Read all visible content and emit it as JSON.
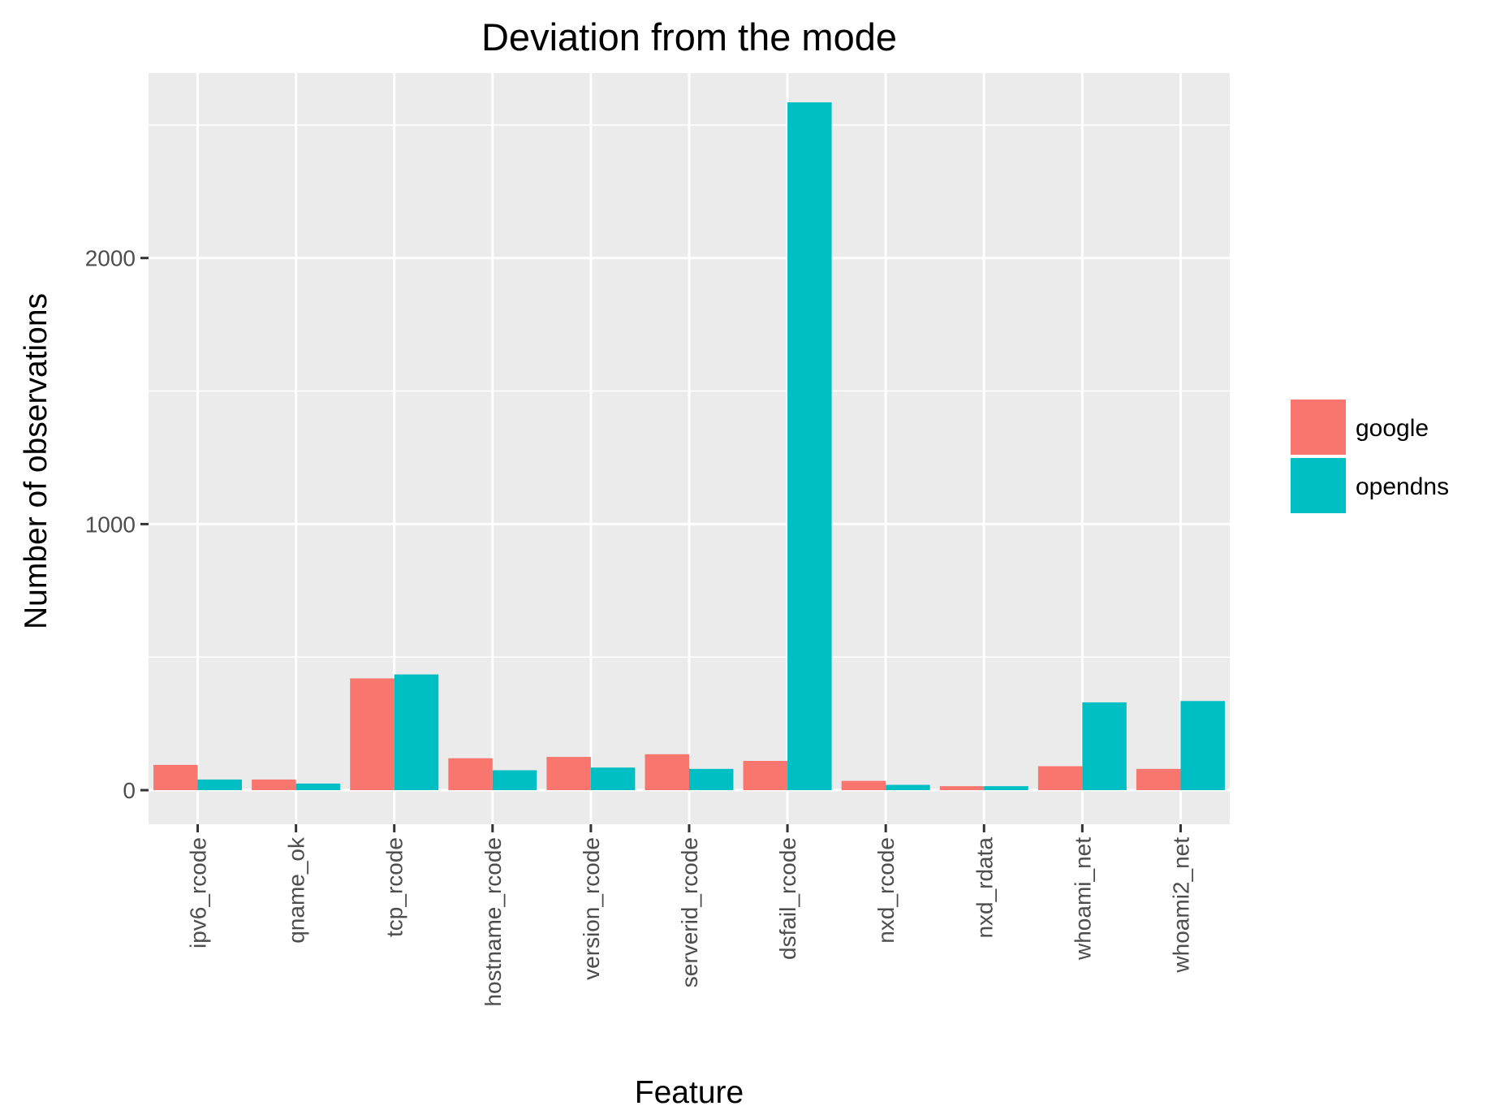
{
  "chart_data": {
    "type": "bar",
    "title": "Deviation from the mode",
    "xlabel": "Feature",
    "ylabel": "Number of observations",
    "categories": [
      "ipv6_rcode",
      "qname_ok",
      "tcp_rcode",
      "hostname_rcode",
      "version_rcode",
      "serverid_rcode",
      "dsfail_rcode",
      "nxd_rcode",
      "nxd_rdata",
      "whoami_net",
      "whoami2_net"
    ],
    "series": [
      {
        "name": "google",
        "color": "#F8766D",
        "values": [
          95,
          40,
          420,
          120,
          125,
          135,
          110,
          35,
          15,
          90,
          80
        ]
      },
      {
        "name": "opendns",
        "color": "#00BFC4",
        "values": [
          40,
          25,
          435,
          75,
          85,
          80,
          2585,
          20,
          15,
          330,
          335
        ]
      }
    ],
    "ylim": [
      -128,
      2695
    ],
    "yticks": [
      0,
      1000,
      2000
    ],
    "grid": true,
    "legend": "right",
    "x_tick_rotation": "vertical"
  }
}
